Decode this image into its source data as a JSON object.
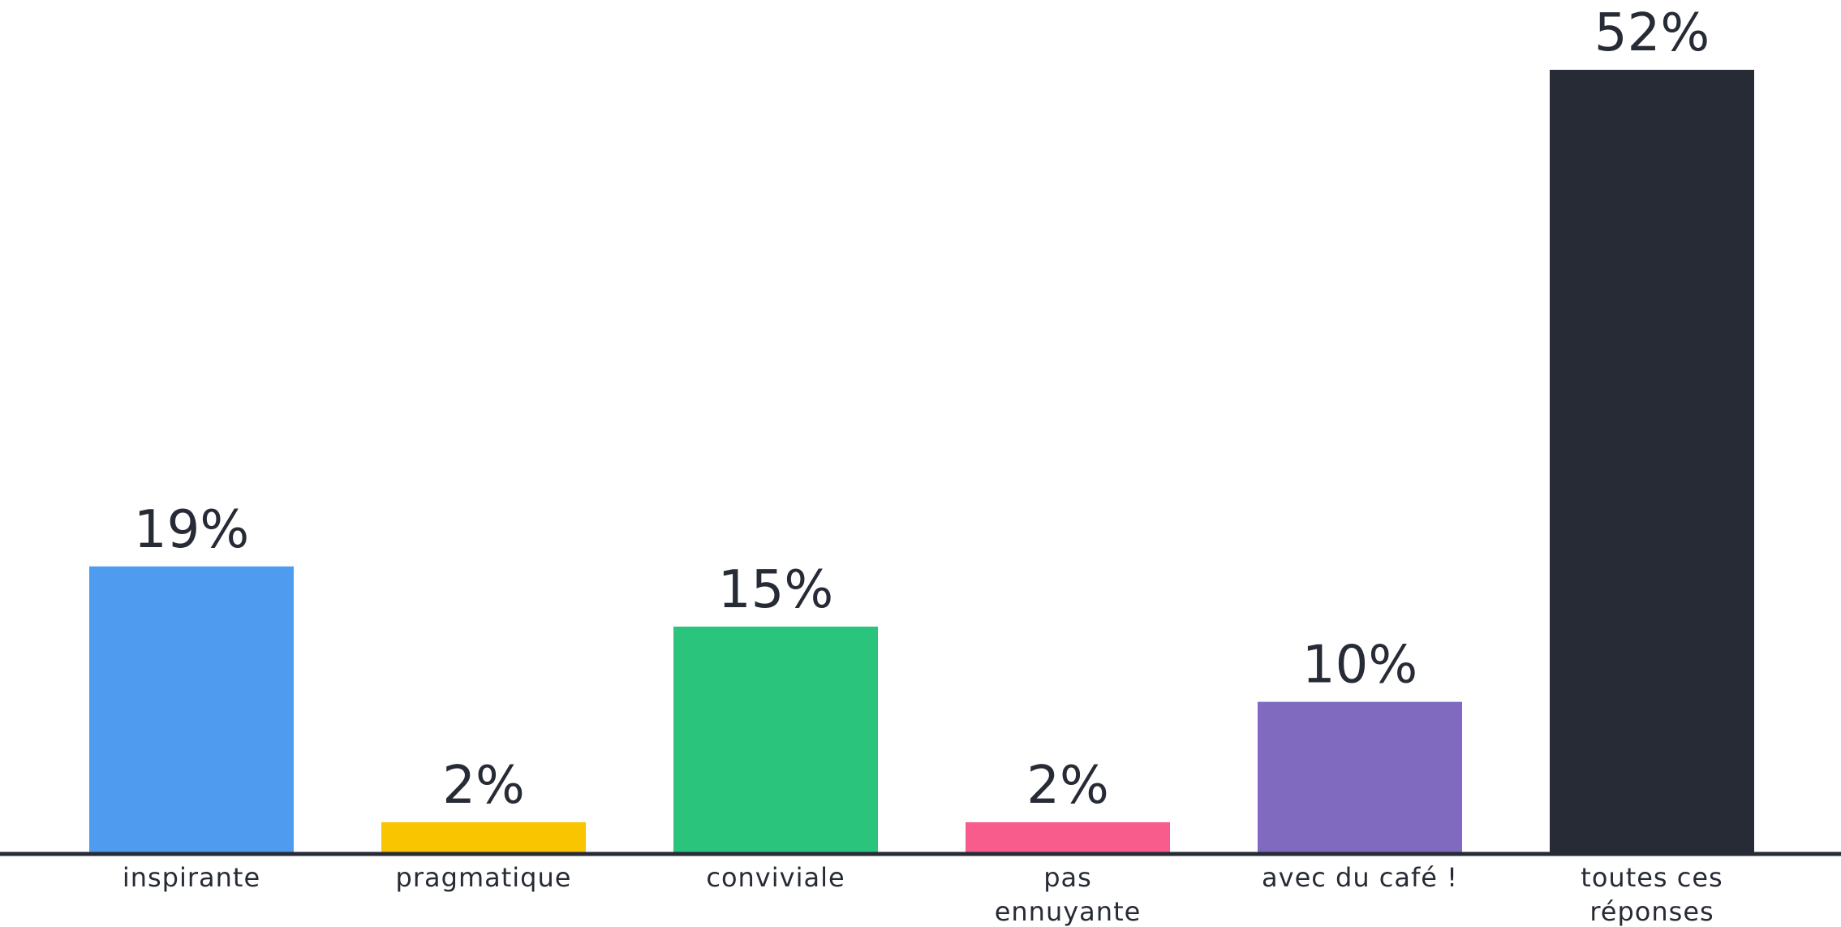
{
  "chart_data": {
    "type": "bar",
    "categories": [
      [
        "inspirante"
      ],
      [
        "pragmatique"
      ],
      [
        "conviviale"
      ],
      [
        "pas",
        "ennuyante"
      ],
      [
        "avec du café !"
      ],
      [
        "toutes ces",
        "réponses"
      ]
    ],
    "values": [
      19,
      2,
      15,
      2,
      10,
      52
    ],
    "value_labels": [
      "19%",
      "2%",
      "15%",
      "2%",
      "10%",
      "52%"
    ],
    "colors": [
      "#4e9bf0",
      "#f9c400",
      "#2ac47d",
      "#f75c8d",
      "#7f6abf",
      "#262b35"
    ],
    "ylim": [
      0,
      52
    ],
    "grid": false,
    "axis_color": "#262b35"
  }
}
